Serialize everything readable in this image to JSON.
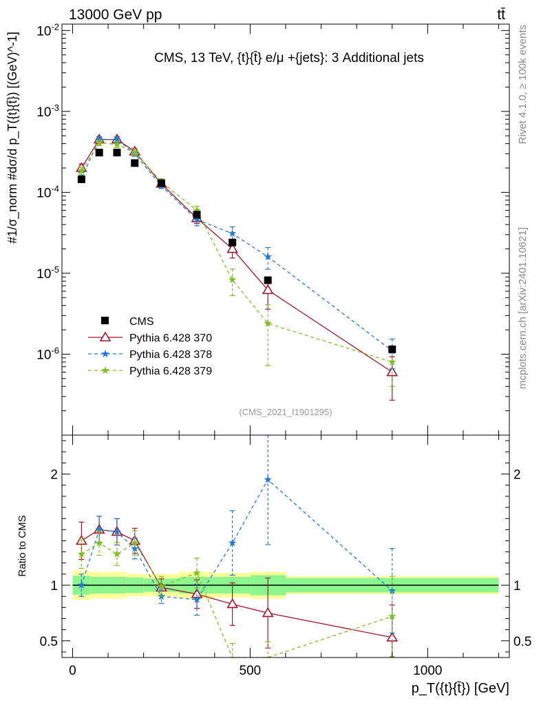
{
  "header": {
    "left_label": "13000 GeV pp",
    "right_label": "tt̄"
  },
  "side_labels": {
    "rivet": "Rivet 4.1.0, ≥ 100k events",
    "mcplots": "mcplots.cern.ch [arXiv:2401.10621]"
  },
  "chart_data": {
    "type": "scatter",
    "title": "CMS, 13 TeV, {t}{t̄} e/μ +{jets}: 3 Additional jets",
    "analysis_id": "(CMS_2021_I1901295)",
    "xlabel": "p_T({t}{t̄}) [GeV]",
    "ylabel": "#1/σ_norm #dσ/d p_T({t}{t̄}) [(GeV)^-1]",
    "ratio_ylabel": "Ratio to CMS",
    "xlim": [
      -30,
      1230
    ],
    "ylim": [
      1e-07,
      0.012
    ],
    "ylog": true,
    "ratio_ylim": [
      0.35,
      2.35
    ],
    "x_ticks": [
      0,
      500,
      1000
    ],
    "y_ticks": [
      {
        "value": 0.01,
        "label": "10^-2"
      },
      {
        "value": 0.001,
        "label": "10^-3"
      },
      {
        "value": 0.0001,
        "label": "10^-4"
      },
      {
        "value": 1e-05,
        "label": "10^-5"
      },
      {
        "value": 1e-06,
        "label": "10^-6"
      }
    ],
    "ratio_ticks": [
      {
        "value": 0.5,
        "label": "0.5"
      },
      {
        "value": 1,
        "label": "1"
      },
      {
        "value": 2,
        "label": "2"
      }
    ],
    "legend": [
      "CMS",
      "Pythia 6.428 370",
      "Pythia 6.428 378",
      "Pythia 6.428 379"
    ],
    "legend_position": "bottom-left",
    "bins": [
      [
        0,
        50
      ],
      [
        50,
        100
      ],
      [
        100,
        150
      ],
      [
        150,
        200
      ],
      [
        200,
        300
      ],
      [
        300,
        400
      ],
      [
        400,
        500
      ],
      [
        500,
        600
      ],
      [
        600,
        1200
      ]
    ],
    "x": [
      25,
      75,
      125,
      175,
      250,
      350,
      450,
      550,
      900
    ],
    "data": {
      "name": "CMS",
      "values": [
        0.000145,
        0.00031,
        0.00031,
        0.00023,
        0.00013,
        5.3e-05,
        2.4e-05,
        8.2e-06,
        1.15e-06
      ],
      "band_inner": [
        0.085,
        0.075,
        0.075,
        0.07,
        0.06,
        0.075,
        0.075,
        0.09,
        0.065
      ],
      "band_outer": [
        0.13,
        0.12,
        0.12,
        0.1,
        0.1,
        0.12,
        0.11,
        0.12,
        0.08
      ]
    },
    "series": [
      {
        "name": "Pythia 6.428 370",
        "color": "#a3132c",
        "style": "solid",
        "marker": "open-triangle",
        "values": [
          0.0002,
          0.00045,
          0.00045,
          0.00032,
          0.000128,
          4.8e-05,
          2e-05,
          6.2e-06,
          6e-07
        ],
        "errors": [
          0.12,
          0.08,
          0.08,
          0.08,
          0.08,
          0.14,
          0.23,
          0.42,
          0.55
        ],
        "ratio": [
          1.4,
          1.5,
          1.48,
          1.4,
          0.98,
          0.92,
          0.83,
          0.75,
          0.53
        ]
      },
      {
        "name": "Pythia 6.428 378",
        "color": "#1f7ad9",
        "style": "dashed",
        "marker": "star",
        "values": [
          0.00015,
          0.00045,
          0.00045,
          0.0003,
          0.00012,
          4.6e-05,
          3.1e-05,
          1.6e-05,
          1.1e-06
        ],
        "errors": [
          0.1,
          0.08,
          0.08,
          0.07,
          0.07,
          0.16,
          0.21,
          0.3,
          0.4
        ],
        "ratio": [
          1.0,
          1.5,
          1.48,
          1.33,
          0.9,
          0.87,
          1.38,
          1.95,
          0.95
        ]
      },
      {
        "name": "Pythia 6.428 379",
        "color": "#7fbf1f",
        "style": "dashed",
        "marker": "star",
        "values": [
          0.000185,
          0.00041,
          0.00039,
          0.00031,
          0.000135,
          6e-05,
          8.3e-06,
          2.4e-06,
          8e-07
        ],
        "errors": [
          0.1,
          0.08,
          0.08,
          0.08,
          0.09,
          0.12,
          0.36,
          0.7,
          0.5
        ],
        "ratio": [
          1.28,
          1.38,
          1.28,
          1.38,
          0.99,
          1.11,
          0.35,
          0.29,
          0.72
        ]
      }
    ]
  }
}
